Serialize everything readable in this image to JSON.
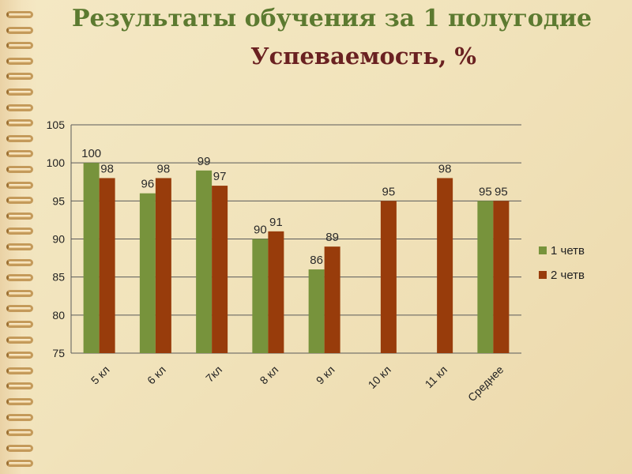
{
  "header": {
    "title": "Результаты обучения за 1 полугодие",
    "subtitle": "Успеваемость, %"
  },
  "colors": {
    "series1": "#77933c",
    "series2": "#983c0b",
    "grid": "#5a5a5a"
  },
  "chart_data": {
    "type": "bar",
    "categories": [
      "5 кл",
      "6 кл",
      "7кл",
      "8 кл",
      "9 кл",
      "10 кл",
      "11 кл",
      "Среднее"
    ],
    "series": [
      {
        "name": "1 четв",
        "values": [
          100,
          96,
          99,
          90,
          86,
          null,
          null,
          95
        ]
      },
      {
        "name": "2 четв",
        "values": [
          98,
          98,
          97,
          91,
          89,
          95,
          98,
          95
        ]
      }
    ],
    "ylim": [
      75,
      105
    ],
    "yticks": [
      75,
      80,
      85,
      90,
      95,
      100,
      105
    ],
    "grid": true,
    "legend_position": "right"
  }
}
